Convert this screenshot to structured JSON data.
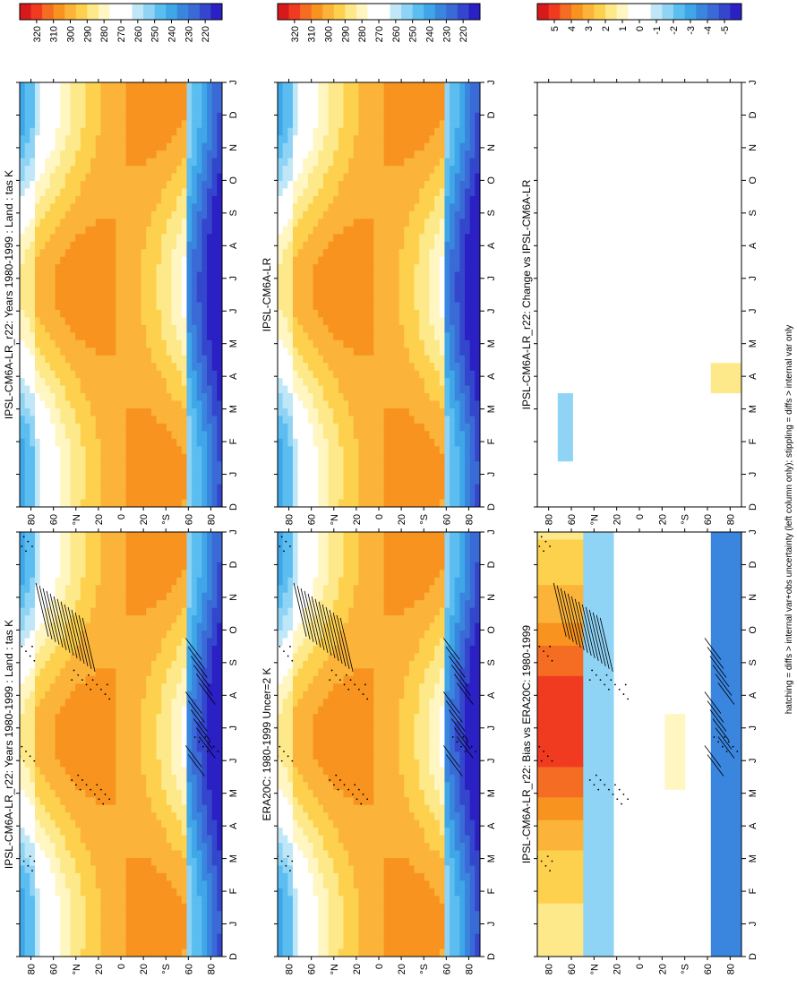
{
  "figure": {
    "footer": "hatching = diffs > internal var+obs uncertainty (left column only); stippling = diffs > internal var only"
  },
  "chart_data": [
    {
      "type": "heatmap",
      "title": "IPSL-CM6A-LR_r22: Years 1980-1999 : Land : tas K",
      "x_ticks": [
        "D",
        "J",
        "F",
        "M",
        "A",
        "M",
        "J",
        "J",
        "A",
        "S",
        "O",
        "N",
        "D",
        "J"
      ],
      "y_ticks": [
        "80",
        "60",
        "°N",
        "20",
        "0",
        "20",
        "°S",
        "60",
        "80"
      ],
      "colorbar": {
        "labels": [
          "320",
          "310",
          "300",
          "290",
          "280",
          "270",
          "260",
          "250",
          "240",
          "230",
          "220"
        ]
      },
      "scale": "abs",
      "hatched": true,
      "stippled": true
    },
    {
      "type": "heatmap",
      "title": "IPSL-CM6A-LR_r22: Years 1980-1999 : Land : tas K",
      "x_ticks": [
        "D",
        "J",
        "F",
        "M",
        "A",
        "M",
        "J",
        "J",
        "A",
        "S",
        "O",
        "N",
        "D",
        "J"
      ],
      "y_ticks": [
        "80",
        "60",
        "°N",
        "20",
        "0",
        "20",
        "°S",
        "60",
        "80"
      ],
      "colorbar": {
        "labels": [
          "320",
          "310",
          "300",
          "290",
          "280",
          "270",
          "260",
          "250",
          "240",
          "230",
          "220"
        ]
      },
      "scale": "abs",
      "hatched": false,
      "stippled": false
    },
    {
      "type": "heatmap",
      "title": "ERA20C: 1980-1999 Uncer=2 K",
      "x_ticks": [
        "D",
        "J",
        "F",
        "M",
        "A",
        "M",
        "J",
        "J",
        "A",
        "S",
        "O",
        "N",
        "D",
        "J"
      ],
      "y_ticks": [
        "80",
        "60",
        "°N",
        "20",
        "0",
        "20",
        "°S",
        "60",
        "80"
      ],
      "colorbar": {
        "labels": [
          "320",
          "310",
          "300",
          "290",
          "280",
          "270",
          "260",
          "250",
          "240",
          "230",
          "220"
        ]
      },
      "scale": "abs",
      "hatched": true,
      "stippled": true
    },
    {
      "type": "heatmap",
      "title": "IPSL-CM6A-LR",
      "x_ticks": [
        "D",
        "J",
        "F",
        "M",
        "A",
        "M",
        "J",
        "J",
        "A",
        "S",
        "O",
        "N",
        "D",
        "J"
      ],
      "y_ticks": [
        "80",
        "60",
        "°N",
        "20",
        "0",
        "20",
        "°S",
        "60",
        "80"
      ],
      "colorbar": {
        "labels": [
          "320",
          "310",
          "300",
          "290",
          "280",
          "270",
          "260",
          "250",
          "240",
          "230",
          "220"
        ]
      },
      "scale": "abs",
      "hatched": false,
      "stippled": false
    },
    {
      "type": "heatmap",
      "title": "IPSL-CM6A-LR_r22: Bias vs ERA20C: 1980-1999",
      "x_ticks": [
        "D",
        "J",
        "F",
        "M",
        "A",
        "M",
        "J",
        "J",
        "A",
        "S",
        "O",
        "N",
        "D",
        "J"
      ],
      "y_ticks": [
        "80",
        "60",
        "°N",
        "20",
        "0",
        "20",
        "°S",
        "60",
        "80"
      ],
      "colorbar": {
        "labels": [
          "5",
          "4",
          "3",
          "2",
          "1",
          "0",
          "-1",
          "-2",
          "-3",
          "-4",
          "-5"
        ]
      },
      "scale": "bias",
      "hatched": true,
      "stippled": true
    },
    {
      "type": "heatmap",
      "title": "IPSL-CM6A-LR_r22: Change vs IPSL-CM6A-LR",
      "x_ticks": [
        "D",
        "J",
        "F",
        "M",
        "A",
        "M",
        "J",
        "J",
        "A",
        "S",
        "O",
        "N",
        "D",
        "J"
      ],
      "y_ticks": [
        "80",
        "60",
        "°N",
        "20",
        "0",
        "20",
        "°S",
        "60",
        "80"
      ],
      "colorbar": {
        "labels": [
          "5",
          "4",
          "3",
          "2",
          "1",
          "0",
          "-1",
          "-2",
          "-3",
          "-4",
          "-5"
        ]
      },
      "scale": "change",
      "hatched": false,
      "stippled": false
    }
  ],
  "colors": {
    "abs": [
      "#d7191c",
      "#f03b20",
      "#f46d23",
      "#f7931e",
      "#fbb33a",
      "#fdd14d",
      "#fde98a",
      "#fff6c2",
      "#ffffff",
      "#ffffff",
      "#bfe7f7",
      "#8fd3f5",
      "#5bbdf0",
      "#3fa6e8",
      "#3a86df",
      "#3a6ad6",
      "#3346cc",
      "#2a20c4"
    ],
    "bias": [
      "#d7191c",
      "#f03b20",
      "#f46d23",
      "#f7931e",
      "#fbb33a",
      "#fdd14d",
      "#fde98a",
      "#fff6c2",
      "#ffffff",
      "#ffffff",
      "#bfe7f7",
      "#8fd3f5",
      "#5bbdf0",
      "#3fa6e8",
      "#3a86df",
      "#3a6ad6",
      "#3346cc",
      "#2a20c4"
    ]
  }
}
